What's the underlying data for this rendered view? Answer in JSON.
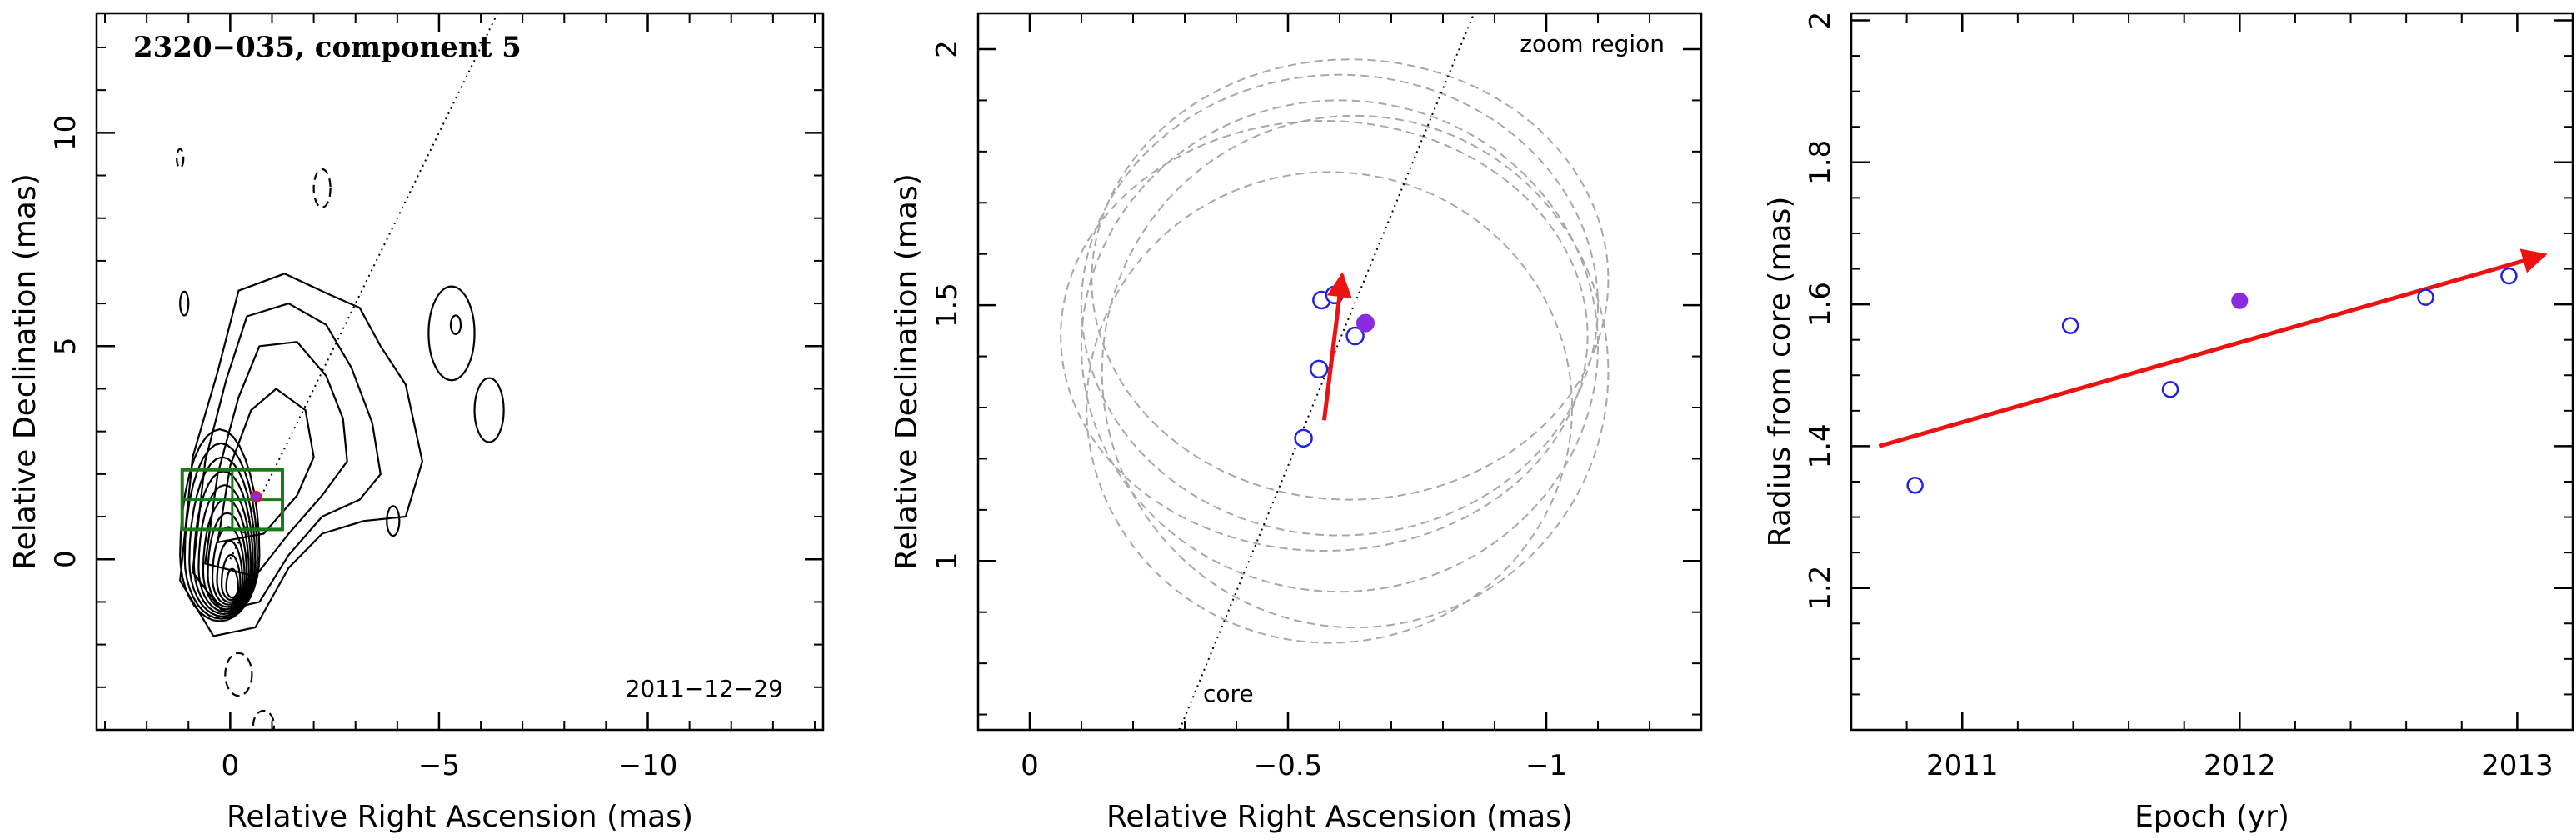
{
  "colors": {
    "axes": "#000000",
    "ellipse": "#a8a8a8",
    "open_point": "#2222dd",
    "filled_point": "#8a2be2",
    "arrow": "#ee1111",
    "box": "#1a7a1a"
  },
  "chart_data": [
    {
      "type": "contour",
      "title": "2320−035, component 5",
      "epoch_label": "2011−12−29",
      "xlabel": "Relative Right Ascension (mas)",
      "ylabel": "Relative Declination (mas)",
      "xlim": [
        3.2,
        -14.2
      ],
      "ylim": [
        -4.0,
        12.8
      ],
      "xticks": [
        0,
        -5,
        -10
      ],
      "xtick_labels": [
        "0",
        "−5",
        "−10"
      ],
      "yticks": [
        0,
        5,
        10
      ],
      "ytick_labels": [
        "0",
        "5",
        "10"
      ],
      "jet_direction_line": [
        [
          0.0,
          0.0
        ],
        [
          -6.5,
          13.0
        ]
      ],
      "zoom_box": {
        "x": [
          1.15,
          -1.25
        ],
        "y": [
          0.7,
          2.1
        ]
      },
      "component_point": [
        -0.62,
        1.47
      ]
    },
    {
      "type": "scatter",
      "title": "",
      "corner_label": "zoom region",
      "core_label": "core",
      "xlabel": "Relative Right Ascension (mas)",
      "ylabel": "Relative Declination (mas)",
      "xlim": [
        0.1,
        -1.3
      ],
      "ylim": [
        0.67,
        2.07
      ],
      "xticks": [
        0,
        -0.5,
        -1
      ],
      "xtick_labels": [
        "0",
        "−0.5",
        "−1"
      ],
      "yticks": [
        1,
        1.5,
        2
      ],
      "ytick_labels": [
        "1",
        "1.5",
        "2"
      ],
      "core_direction_line": [
        [
          -0.29,
          0.67
        ],
        [
          -0.86,
          2.07
        ]
      ],
      "points_open": [
        [
          -0.53,
          1.24
        ],
        [
          -0.56,
          1.375
        ],
        [
          -0.565,
          1.51
        ],
        [
          -0.59,
          1.52
        ],
        [
          -0.63,
          1.44
        ]
      ],
      "point_filled": [
        -0.65,
        1.465
      ],
      "motion_vector": {
        "from": [
          -0.57,
          1.275
        ],
        "to": [
          -0.605,
          1.56
        ]
      },
      "beam_ellipses": [
        {
          "cx": -0.6,
          "cy": 1.5,
          "rx": 0.5,
          "ry": 0.45,
          "angle": 0
        },
        {
          "cx": -0.62,
          "cy": 1.55,
          "rx": 0.5,
          "ry": 0.43,
          "angle": 0
        },
        {
          "cx": -0.6,
          "cy": 1.42,
          "rx": 0.5,
          "ry": 0.48,
          "angle": 0
        },
        {
          "cx": -0.63,
          "cy": 1.37,
          "rx": 0.49,
          "ry": 0.5,
          "angle": 0
        },
        {
          "cx": -0.58,
          "cy": 1.3,
          "rx": 0.47,
          "ry": 0.46,
          "angle": 0
        },
        {
          "cx": -0.57,
          "cy": 1.44,
          "rx": 0.51,
          "ry": 0.42,
          "angle": 0
        }
      ]
    },
    {
      "type": "scatter",
      "title": "",
      "xlabel": "Epoch (yr)",
      "ylabel": "Radius from core (mas)",
      "xlim": [
        2010.6,
        2013.2
      ],
      "ylim": [
        1.0,
        2.01
      ],
      "xticks": [
        2011,
        2012,
        2013
      ],
      "xtick_labels": [
        "2011",
        "2012",
        "2013"
      ],
      "yticks": [
        1.2,
        1.4,
        1.6,
        1.8,
        2.0
      ],
      "ytick_labels": [
        "1.2",
        "1.4",
        "1.6",
        "1.8",
        "2"
      ],
      "points_open": [
        [
          2010.83,
          1.345
        ],
        [
          2011.39,
          1.57
        ],
        [
          2011.75,
          1.48
        ],
        [
          2012.67,
          1.61
        ],
        [
          2012.97,
          1.64
        ]
      ],
      "point_filled": [
        2012.0,
        1.605
      ],
      "fit_vector": {
        "from": [
          2010.7,
          1.4
        ],
        "to": [
          2013.1,
          1.67
        ]
      }
    }
  ]
}
